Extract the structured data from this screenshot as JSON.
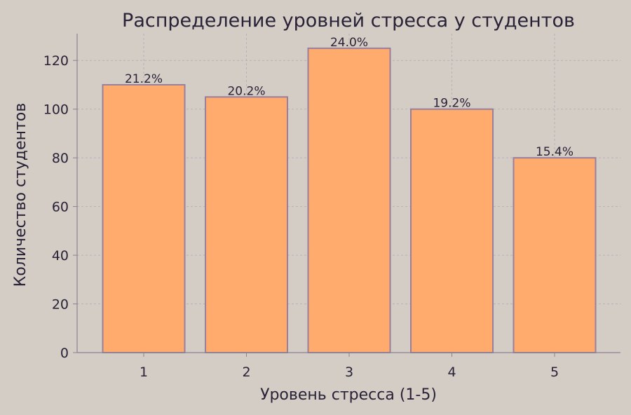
{
  "chart_data": {
    "type": "bar",
    "title": "Распределение уровней стресса у студентов",
    "xlabel": "Уровень стресса (1-5)",
    "ylabel": "Количество студентов",
    "categories": [
      "1",
      "2",
      "3",
      "4",
      "5"
    ],
    "values": [
      110,
      105,
      125,
      100,
      80
    ],
    "data_labels": [
      "21.2%",
      "20.2%",
      "24.0%",
      "19.2%",
      "15.4%"
    ],
    "yticks": [
      0,
      20,
      40,
      60,
      80,
      100,
      120
    ],
    "ylim": [
      0,
      131
    ],
    "grid": true,
    "colors": {
      "bar_fill": "#ffab6e",
      "bar_edge": "#9a7f9a",
      "grid": "#b9b0b6",
      "axis": "#8a8290",
      "text": "#2a2236",
      "background": "#d3cdc6"
    }
  }
}
